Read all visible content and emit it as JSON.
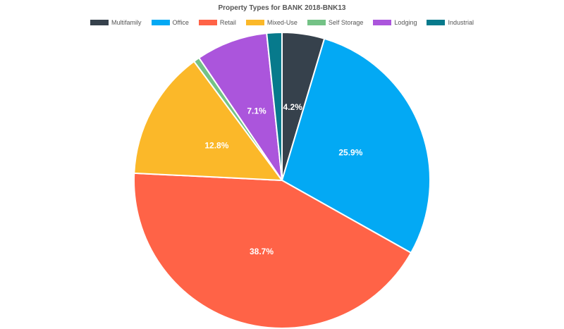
{
  "chart_data": {
    "type": "pie",
    "title": "Property Types for BANK 2018-BNK13",
    "legend_position": "top",
    "slices": [
      {
        "name": "Multifamily",
        "value": 4.2,
        "label": "4.2%",
        "color": "#36414c"
      },
      {
        "name": "Office",
        "value": 25.9,
        "label": "25.9%",
        "color": "#03a9f4"
      },
      {
        "name": "Retail",
        "value": 38.7,
        "label": "38.7%",
        "color": "#ff6347"
      },
      {
        "name": "Mixed-Use",
        "value": 12.8,
        "label": "12.8%",
        "color": "#fbb829"
      },
      {
        "name": "Self Storage",
        "value": 0.6,
        "label": "",
        "color": "#74c286"
      },
      {
        "name": "Lodging",
        "value": 7.1,
        "label": "7.1%",
        "color": "#ab55dc"
      },
      {
        "name": "Industrial",
        "value": 1.5,
        "label": "",
        "color": "#077a8c"
      }
    ]
  }
}
